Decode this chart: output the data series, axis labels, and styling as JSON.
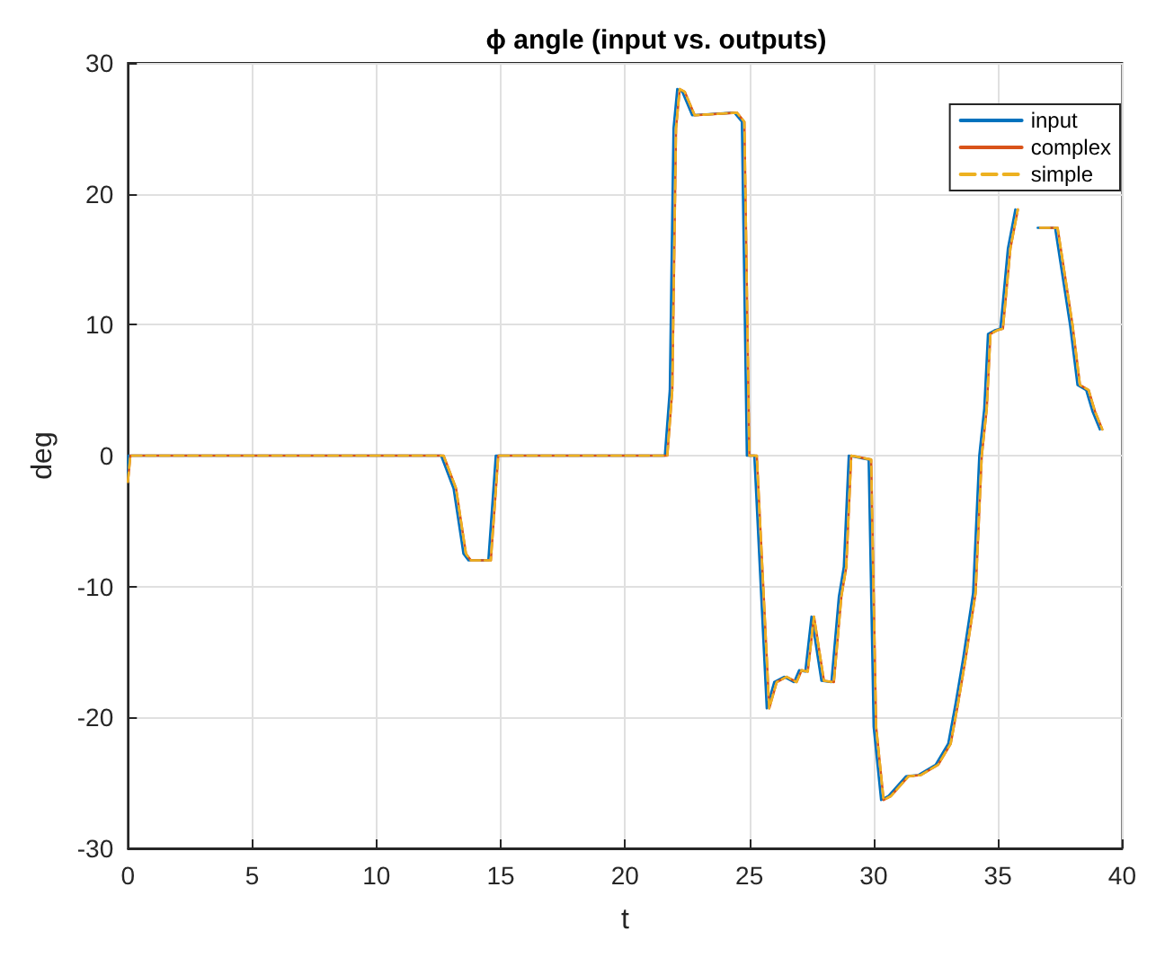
{
  "chart_data": {
    "type": "line",
    "title": "ϕ angle (input vs. outputs)",
    "xlabel": "t",
    "ylabel": "deg",
    "x": [
      0,
      0.1,
      12.7,
      12.9,
      13.2,
      13.4,
      13.6,
      13.8,
      14.6,
      14.9,
      15.0,
      21.7,
      21.9,
      22.05,
      22.2,
      22.4,
      22.8,
      24.5,
      24.8,
      25.0,
      25.3,
      25.8,
      26.1,
      26.5,
      26.9,
      27.1,
      27.35,
      27.6,
      28.0,
      28.4,
      28.7,
      28.9,
      29.1,
      29.9,
      30.1,
      30.4,
      30.7,
      31.4,
      31.9,
      32.6,
      33.1,
      33.4,
      33.7,
      34.1,
      34.35,
      34.55,
      34.7,
      35.0,
      35.2,
      35.5,
      35.8,
      36.2,
      36.7,
      37.4,
      38.0,
      38.3,
      38.65,
      38.9,
      39.2
    ],
    "series": [
      {
        "name": "input",
        "color": "#0072bd",
        "line_style": "solid",
        "x": [
          0,
          0.02,
          12.6,
          12.8,
          13.1,
          13.3,
          13.5,
          13.7,
          14.5,
          14.8,
          14.9,
          21.6,
          21.8,
          21.95,
          22.1,
          22.3,
          22.7,
          24.4,
          24.7,
          24.9,
          25.2,
          25.7,
          26.0,
          26.4,
          26.8,
          27.0,
          27.25,
          27.5,
          27.9,
          28.3,
          28.6,
          28.8,
          29.0,
          29.8,
          30.0,
          30.3,
          30.6,
          31.3,
          31.8,
          32.5,
          33.0,
          33.3,
          33.6,
          34.0,
          34.25,
          34.45,
          34.6,
          34.9,
          35.1,
          35.4,
          35.7,
          36.1,
          36.6,
          37.3,
          37.9,
          38.2,
          38.55,
          38.8,
          39.1
        ],
        "values": [
          -2,
          0,
          0,
          -1,
          -2.5,
          -5,
          -7.5,
          -8,
          -8,
          0,
          0,
          0,
          5,
          25,
          28,
          27.8,
          26,
          26.2,
          25.5,
          0,
          0,
          -19.3,
          -17.3,
          -16.9,
          -17.3,
          -16.4,
          -16.5,
          -12.3,
          -17.2,
          -17.3,
          -10.8,
          -8.5,
          0,
          -0.3,
          -20.7,
          -26.3,
          -26,
          -24.5,
          -24.4,
          -23.6,
          -22,
          -18.9,
          -15.5,
          -10.5,
          0,
          3.6,
          9.3,
          9.6,
          9.7,
          15.8,
          18.8,
          null,
          17.4,
          17.4,
          10,
          5.4,
          5,
          3.4,
          2.0
        ]
      },
      {
        "name": "complex",
        "color": "#d95319",
        "line_style": "solid",
        "values": [
          -2,
          0,
          0,
          -1,
          -2.5,
          -5,
          -7.5,
          -8,
          -8,
          0,
          0,
          0,
          5,
          25,
          28,
          27.8,
          26,
          26.2,
          25.5,
          0,
          0,
          -19.3,
          -17.3,
          -16.9,
          -17.3,
          -16.4,
          -16.5,
          -12.3,
          -17.2,
          -17.3,
          -10.8,
          -8.5,
          0,
          -0.3,
          -20.7,
          -26.3,
          -26,
          -24.5,
          -24.4,
          -23.6,
          -22,
          -18.9,
          -15.5,
          -10.5,
          0,
          3.6,
          9.3,
          9.6,
          9.7,
          15.8,
          18.8,
          null,
          17.4,
          17.4,
          10,
          5.4,
          5,
          3.4,
          2.0
        ]
      },
      {
        "name": "simple",
        "color": "#edb120",
        "line_style": "dashed",
        "values": [
          -2,
          0,
          0,
          -1,
          -2.5,
          -5,
          -7.5,
          -8,
          -8,
          0,
          0,
          0,
          5,
          25,
          28,
          27.8,
          26,
          26.2,
          25.5,
          0,
          0,
          -19.3,
          -17.3,
          -16.9,
          -17.3,
          -16.4,
          -16.5,
          -12.3,
          -17.2,
          -17.3,
          -10.8,
          -8.5,
          0,
          -0.3,
          -20.7,
          -26.3,
          -26,
          -24.5,
          -24.4,
          -23.6,
          -22,
          -18.9,
          -15.5,
          -10.5,
          0,
          3.6,
          9.3,
          9.6,
          9.7,
          15.8,
          18.8,
          null,
          17.4,
          17.4,
          10,
          5.4,
          5,
          3.4,
          2.0
        ]
      }
    ],
    "xlim": [
      0,
      40
    ],
    "xticks": [
      0,
      5,
      10,
      15,
      20,
      25,
      30,
      35,
      40
    ],
    "ylim": [
      -30,
      30
    ],
    "yticks": [
      -30,
      -20,
      -10,
      0,
      10,
      20,
      30
    ],
    "grid": true,
    "legend": "top right",
    "marker": "none"
  }
}
